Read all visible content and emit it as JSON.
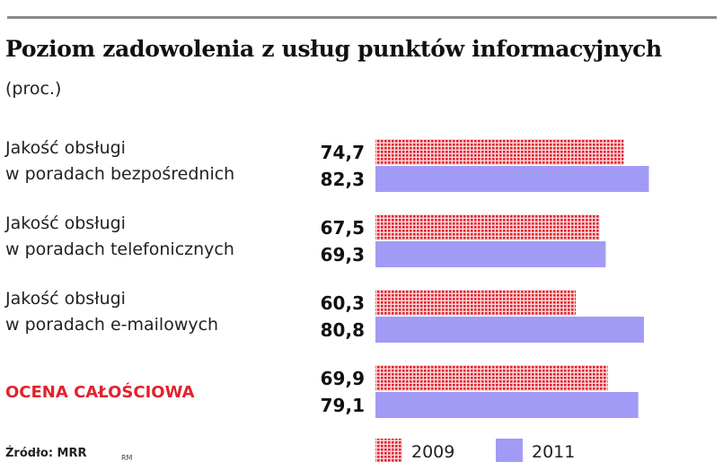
{
  "header": {
    "title": "Poziom zadowolenia z usług punktów informacyjnych",
    "subtitle": "(proc.)"
  },
  "footer": {
    "source": "Źródło: MRR",
    "initials": "RM"
  },
  "colors": {
    "series_2009": "#e0232e",
    "series_2011": "#a29bf5",
    "highlight_label": "#e0232e"
  },
  "chart_data": {
    "type": "bar",
    "orientation": "horizontal",
    "title": "Poziom zadowolenia z usług punktów informacyjnych",
    "subtitle": "(proc.)",
    "categories": [
      {
        "lines": [
          "Jakość obsługi",
          "w poradach bezpośrednich"
        ],
        "highlight": false
      },
      {
        "lines": [
          "Jakość obsługi",
          "w poradach telefonicznych"
        ],
        "highlight": false
      },
      {
        "lines": [
          "Jakość obsługi",
          "w poradach e-mailowych"
        ],
        "highlight": false
      },
      {
        "lines": [
          "OCENA CAŁOŚCIOWA"
        ],
        "highlight": true
      }
    ],
    "series": [
      {
        "name": "2009",
        "values": [
          74.7,
          67.5,
          60.3,
          69.9
        ],
        "labels": [
          "74,7",
          "67,5",
          "60,3",
          "69,9"
        ],
        "pattern": "dotted"
      },
      {
        "name": "2011",
        "values": [
          82.3,
          69.3,
          80.8,
          79.1
        ],
        "labels": [
          "82,3",
          "69,3",
          "80,8",
          "79,1"
        ],
        "pattern": "solid"
      }
    ],
    "legend": {
      "position": "bottom"
    },
    "grid": false
  }
}
